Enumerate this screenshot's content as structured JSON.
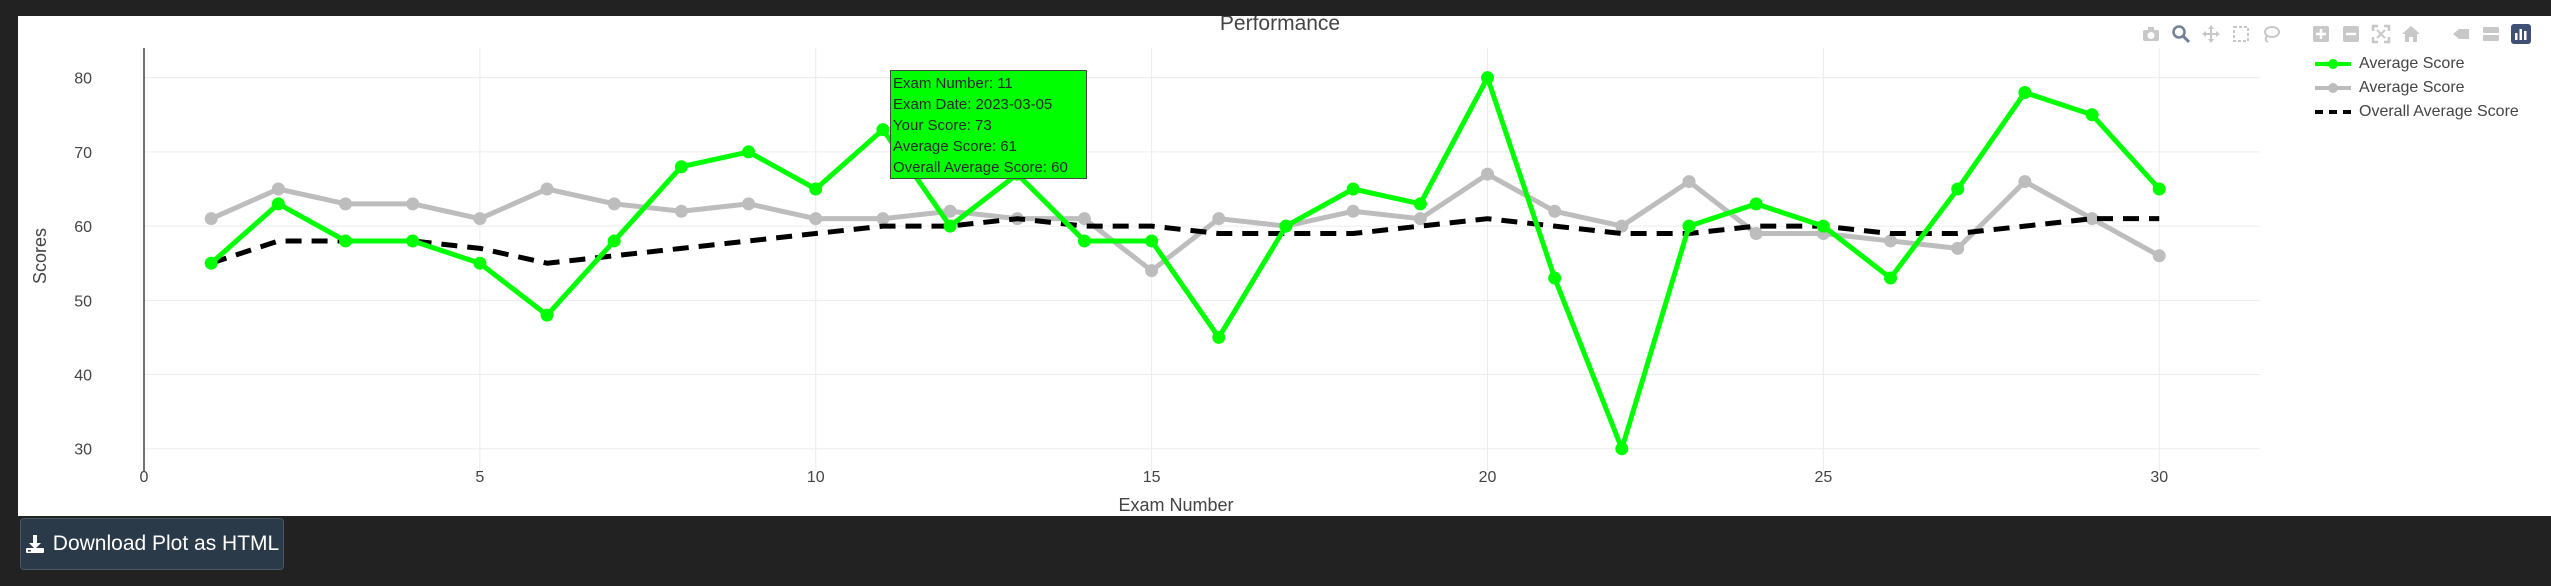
{
  "toolbar": {
    "icons": [
      "camera-icon",
      "zoom-icon",
      "pan-icon",
      "box-select-icon",
      "lasso-select-icon",
      "zoom-in-icon",
      "zoom-out-icon",
      "autoscale-icon",
      "reset-axes-icon",
      "hover-closest-icon",
      "hover-compare-icon",
      "plotly-logo-icon"
    ]
  },
  "download_button": {
    "label": "Download Plot as HTML",
    "icon": "download-icon"
  },
  "tooltip": {
    "lines": [
      "Exam Number: 11",
      "Exam Date: 2023-03-05",
      "Your Score: 73",
      "Average Score: 61",
      "Overall Average Score: 60"
    ],
    "background": "#00ff00"
  },
  "chart_data": {
    "type": "line",
    "title": "Performance",
    "xlabel": "Exam Number",
    "ylabel": "Scores",
    "xlim": [
      0,
      31.5
    ],
    "ylim": [
      27,
      84
    ],
    "xticks": [
      0,
      5,
      10,
      15,
      20,
      25,
      30
    ],
    "yticks": [
      30,
      40,
      50,
      60,
      70,
      80
    ],
    "grid": true,
    "legend_position": "top-right",
    "x": [
      1,
      2,
      3,
      4,
      5,
      6,
      7,
      8,
      9,
      10,
      11,
      12,
      13,
      14,
      15,
      16,
      17,
      18,
      19,
      20,
      21,
      22,
      23,
      24,
      25,
      26,
      27,
      28,
      29,
      30
    ],
    "series": [
      {
        "name": "Average Score",
        "color": "#00ff00",
        "style": "solid-markers",
        "values": [
          55,
          63,
          58,
          58,
          55,
          48,
          58,
          68,
          70,
          65,
          73,
          60,
          67,
          58,
          58,
          45,
          60,
          65,
          63,
          80,
          53,
          30,
          60,
          63,
          60,
          53,
          65,
          78,
          75,
          65
        ]
      },
      {
        "name": "Average Score",
        "color": "#bdbdbd",
        "style": "solid-markers",
        "values": [
          61,
          65,
          63,
          63,
          61,
          65,
          63,
          62,
          63,
          61,
          61,
          62,
          61,
          61,
          54,
          61,
          60,
          62,
          61,
          67,
          62,
          60,
          66,
          59,
          59,
          58,
          57,
          66,
          61,
          56
        ]
      },
      {
        "name": "Overall Average Score",
        "color": "#000000",
        "style": "dash",
        "values": [
          55,
          58,
          58,
          58,
          57,
          55,
          56,
          57,
          58,
          59,
          60,
          60,
          61,
          60,
          60,
          59,
          59,
          59,
          60,
          61,
          60,
          59,
          59,
          60,
          60,
          59,
          59,
          60,
          61,
          61
        ]
      }
    ]
  }
}
